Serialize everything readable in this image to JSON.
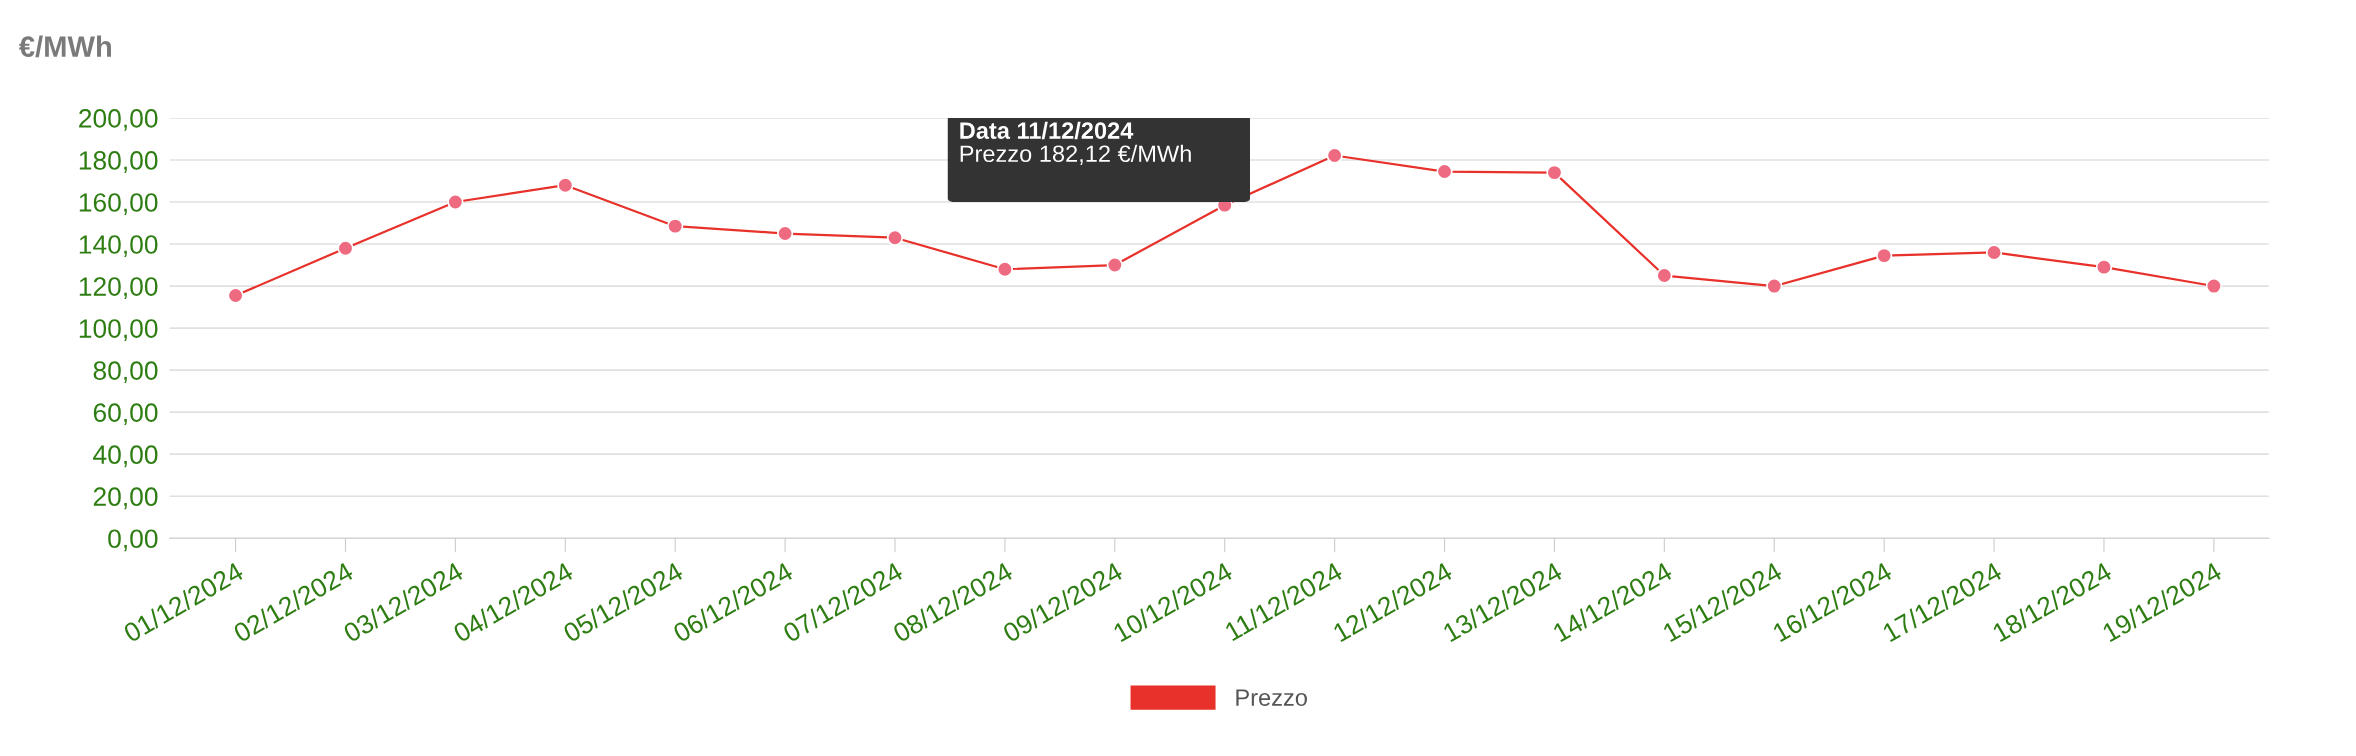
{
  "chart_data": {
    "type": "line",
    "ylabel": "€/MWh",
    "categories": [
      "01/12/2024",
      "02/12/2024",
      "03/12/2024",
      "04/12/2024",
      "05/12/2024",
      "06/12/2024",
      "07/12/2024",
      "08/12/2024",
      "09/12/2024",
      "10/12/2024",
      "11/12/2024",
      "12/12/2024",
      "13/12/2024",
      "14/12/2024",
      "15/12/2024",
      "16/12/2024",
      "17/12/2024",
      "18/12/2024",
      "19/12/2024"
    ],
    "series": [
      {
        "name": "Prezzo",
        "color": "#e8312a",
        "colors": [
          "#ee6a80",
          "#ee6a80",
          "#ee6a80",
          "#ee6a80",
          "#ee6a80",
          "#ee6a80",
          "#ee6a80",
          "#ee6a80",
          "#ee6a80",
          "#ee6a80",
          "#ee6a80",
          "#ee6a80",
          "#ee6a80",
          "#ee6a80",
          "#ee6a80",
          "#ee6a80",
          "#ee6a80",
          "#ee6a80",
          "#ee6a80"
        ],
        "values": [
          115.5,
          138,
          160,
          168,
          148.5,
          145,
          143,
          128,
          130,
          158.5,
          182.12,
          174.5,
          174,
          125,
          120,
          134.5,
          136,
          129,
          120
        ]
      }
    ],
    "ylim": [
      0,
      200
    ],
    "yticks": [
      {
        "value": 0,
        "label": "0,00"
      },
      {
        "value": 20,
        "label": "20,00"
      },
      {
        "value": 40,
        "label": "40,00"
      },
      {
        "value": 60,
        "label": "60,00"
      },
      {
        "value": 80,
        "label": "80,00"
      },
      {
        "value": 100,
        "label": "100,00"
      },
      {
        "value": 120,
        "label": "120,00"
      },
      {
        "value": 140,
        "label": "140,00"
      },
      {
        "value": 160,
        "label": "160,00"
      },
      {
        "value": 180,
        "label": "180,00"
      },
      {
        "value": 200,
        "label": "200,00"
      }
    ],
    "annotations": [
      "Data 11/12/2024",
      "Prezzo 182,12 €/MWh"
    ],
    "grid": "y",
    "legend": "bottom",
    "marker": "circle",
    "line_style": "solid"
  }
}
